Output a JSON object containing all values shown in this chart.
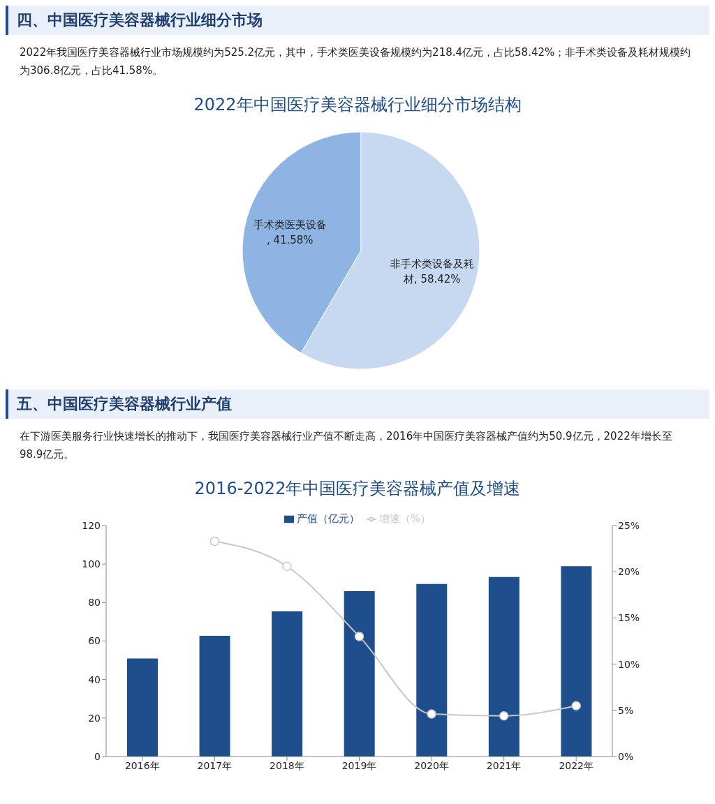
{
  "chart_data": [
    {
      "type": "pie",
      "title": "2022年中国医疗美容器械行业细分市场结构",
      "annotations": [
        "四、中国医疗美容器械行业细分市场",
        "2022年我国医疗美容器械行业市场规模约为525.2亿元，其中，手术类医美设备规模约为218.4亿元，占比58.42%；非手术类设备及耗材规模约为306.8亿元，占比41.58%。"
      ],
      "categories": [
        "手术类医美设备",
        "非手术类设备及耗材"
      ],
      "values": [
        41.58,
        58.42
      ],
      "value_labels": [
        ", 41.58%",
        ", 58.42%"
      ],
      "colors": [
        "#8eb4e3",
        "#c6d9f0"
      ]
    },
    {
      "type": "bar",
      "title": "2016-2022年中国医疗美容器械产值及增速",
      "annotations": [
        "五、中国医疗美容器械行业产值",
        "在下游医美服务行业快速增长的推动下，我国医疗美容器械行业产值不断走高，2016年中国医疗美容器械产值约为50.9亿元，2022年增长至98.9亿元。"
      ],
      "categories": [
        "2016年",
        "2017年",
        "2018年",
        "2019年",
        "2020年",
        "2021年",
        "2022年"
      ],
      "series": [
        {
          "name": "产值（亿元）",
          "color": "#1f4e8c",
          "values": [
            50.9,
            62.7,
            75.4,
            85.9,
            89.6,
            93.3,
            98.9
          ]
        },
        {
          "name": "增速（%）",
          "type": "line",
          "axis": "y2",
          "color": "#c8c8c8",
          "marker": "circle",
          "values": [
            null,
            23.3,
            20.6,
            13.0,
            4.6,
            4.4,
            5.5
          ]
        }
      ],
      "ylim": [
        0,
        120
      ],
      "yticks": [
        0,
        20,
        40,
        60,
        80,
        100,
        120
      ],
      "y2lim": [
        0,
        25
      ],
      "y2ticks": [
        {
          "value": 0,
          "label": "0%"
        },
        {
          "value": 5,
          "label": "5%"
        },
        {
          "value": 10,
          "label": "10%"
        },
        {
          "value": 15,
          "label": "15%"
        },
        {
          "value": 20,
          "label": "20%"
        },
        {
          "value": 25,
          "label": "25%"
        }
      ],
      "legend": "top",
      "grid": false
    }
  ]
}
